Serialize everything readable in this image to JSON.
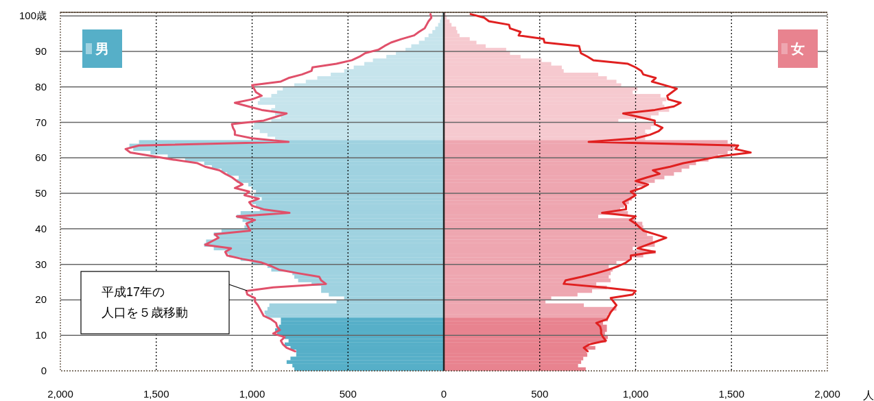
{
  "chart_data": {
    "type": "bar",
    "orientation": "horizontal",
    "stacked": true,
    "legend": "top",
    "xlabel": "人",
    "grid": true,
    "categories": [
      "100歳",
      null,
      null,
      null,
      null,
      null,
      null,
      null,
      null,
      null,
      "90",
      null,
      null,
      null,
      null,
      null,
      null,
      null,
      null,
      null,
      "80",
      null,
      null,
      null,
      null,
      null,
      null,
      null,
      null,
      null,
      "70",
      null,
      null,
      null,
      null,
      null,
      null,
      null,
      null,
      null,
      "60",
      null,
      null,
      null,
      null,
      null,
      null,
      null,
      null,
      null,
      "50",
      null,
      null,
      null,
      null,
      null,
      null,
      null,
      null,
      null,
      "40",
      null,
      null,
      null,
      null,
      null,
      null,
      null,
      null,
      null,
      "30",
      null,
      null,
      null,
      null,
      null,
      null,
      null,
      null,
      null,
      "20",
      null,
      null,
      null,
      null,
      null,
      null,
      null,
      null,
      null,
      "10",
      null,
      null,
      null,
      null,
      null,
      null,
      null,
      null,
      null,
      "0"
    ],
    "xlim": [
      -2000,
      2000
    ],
    "xticks": [
      {
        "value": -2000,
        "label": "2,000"
      },
      {
        "value": -1500,
        "label": "1,500"
      },
      {
        "value": -1000,
        "label": "1,000"
      },
      {
        "value": -500,
        "label": "500"
      },
      0,
      500,
      {
        "value": 1000,
        "label": "1,000"
      },
      {
        "value": 1500,
        "label": "1,500"
      },
      {
        "value": 2000,
        "label": "2,000"
      }
    ],
    "annotations": [
      "平成17年の",
      "人口を５歳移動"
    ],
    "series": [
      {
        "name": "男",
        "color": "#56afc8",
        "colors": [
          "#c6e4ec",
          "#c6e4ec",
          "#c6e4ec",
          "#c6e4ec",
          "#c6e4ec",
          "#c6e4ec",
          "#c6e4ec",
          "#c6e4ec",
          "#c6e4ec",
          "#c6e4ec",
          "#c6e4ec",
          "#c6e4ec",
          "#c6e4ec",
          "#c6e4ec",
          "#c6e4ec",
          "#c6e4ec",
          "#c6e4ec",
          "#c6e4ec",
          "#c6e4ec",
          "#c6e4ec",
          "#c6e4ec",
          "#c6e4ec",
          "#c6e4ec",
          "#c6e4ec",
          "#c6e4ec",
          "#c6e4ec",
          "#c6e4ec",
          "#c6e4ec",
          "#c6e4ec",
          "#c6e4ec",
          "#c6e4ec",
          "#c6e4ec",
          "#c6e4ec",
          "#c6e4ec",
          "#c6e4ec",
          "#c6e4ec",
          "#9fd2e0",
          "#9fd2e0",
          "#9fd2e0",
          "#9fd2e0",
          "#9fd2e0",
          "#9fd2e0",
          "#9fd2e0",
          "#9fd2e0",
          "#9fd2e0",
          "#9fd2e0",
          "#9fd2e0",
          "#9fd2e0",
          "#9fd2e0",
          "#9fd2e0",
          "#9fd2e0",
          "#9fd2e0",
          "#9fd2e0",
          "#9fd2e0",
          "#9fd2e0",
          "#9fd2e0",
          "#9fd2e0",
          "#9fd2e0",
          "#9fd2e0",
          "#9fd2e0",
          "#9fd2e0",
          "#9fd2e0",
          "#9fd2e0",
          "#9fd2e0",
          "#9fd2e0",
          "#9fd2e0",
          "#9fd2e0",
          "#9fd2e0",
          "#9fd2e0",
          "#9fd2e0",
          "#9fd2e0",
          "#9fd2e0",
          "#9fd2e0",
          "#9fd2e0",
          "#9fd2e0",
          "#9fd2e0",
          "#9fd2e0",
          "#9fd2e0",
          "#9fd2e0",
          "#9fd2e0",
          "#9fd2e0",
          "#9fd2e0",
          "#9fd2e0",
          "#9fd2e0",
          "#9fd2e0",
          "#9fd2e0",
          "#56afc8",
          "#56afc8",
          "#56afc8",
          "#56afc8",
          "#56afc8",
          "#56afc8",
          "#56afc8",
          "#56afc8",
          "#56afc8",
          "#56afc8",
          "#56afc8",
          "#56afc8",
          "#56afc8",
          "#56afc8",
          "#56afc8"
        ],
        "values": [
          -10,
          -15,
          -20,
          -30,
          -45,
          -60,
          -80,
          -100,
          -130,
          -170,
          -200,
          -250,
          -300,
          -370,
          -415,
          -470,
          -520,
          -590,
          -660,
          -720,
          -780,
          -840,
          -870,
          -900,
          -960,
          -970,
          -880,
          -900,
          -880,
          -850,
          -900,
          -990,
          -1000,
          -960,
          -920,
          -880,
          -1590,
          -1640,
          -1620,
          -1530,
          -1440,
          -1350,
          -1250,
          -1210,
          -1160,
          -1130,
          -1070,
          -1080,
          -1020,
          -1000,
          -980,
          -990,
          -950,
          -1000,
          -980,
          -960,
          -1060,
          -1080,
          -1050,
          -1030,
          -1040,
          -1160,
          -1200,
          -1180,
          -1240,
          -1250,
          -1200,
          -1140,
          -1120,
          -1060,
          -1000,
          -920,
          -900,
          -790,
          -780,
          -760,
          -690,
          -640,
          -640,
          -600,
          -520,
          -560,
          -910,
          -920,
          -935,
          -930,
          -850,
          -850,
          -860,
          -880,
          -870,
          -830,
          -810,
          -830,
          -800,
          -770,
          -770,
          -800,
          -820,
          -790,
          -780
        ]
      },
      {
        "name": "女",
        "color": "#e8838f",
        "colors": [
          "#f6c9cf",
          "#f6c9cf",
          "#f6c9cf",
          "#f6c9cf",
          "#f6c9cf",
          "#f6c9cf",
          "#f6c9cf",
          "#f6c9cf",
          "#f6c9cf",
          "#f6c9cf",
          "#f6c9cf",
          "#f6c9cf",
          "#f6c9cf",
          "#f6c9cf",
          "#f6c9cf",
          "#f6c9cf",
          "#f6c9cf",
          "#f6c9cf",
          "#f6c9cf",
          "#f6c9cf",
          "#f6c9cf",
          "#f6c9cf",
          "#f6c9cf",
          "#f6c9cf",
          "#f6c9cf",
          "#f6c9cf",
          "#f6c9cf",
          "#f6c9cf",
          "#f6c9cf",
          "#f6c9cf",
          "#f6c9cf",
          "#f6c9cf",
          "#f6c9cf",
          "#f6c9cf",
          "#f6c9cf",
          "#f6c9cf",
          "#eea6b0",
          "#eea6b0",
          "#eea6b0",
          "#eea6b0",
          "#eea6b0",
          "#eea6b0",
          "#eea6b0",
          "#eea6b0",
          "#eea6b0",
          "#eea6b0",
          "#eea6b0",
          "#eea6b0",
          "#eea6b0",
          "#eea6b0",
          "#eea6b0",
          "#eea6b0",
          "#eea6b0",
          "#eea6b0",
          "#eea6b0",
          "#eea6b0",
          "#eea6b0",
          "#eea6b0",
          "#eea6b0",
          "#eea6b0",
          "#eea6b0",
          "#eea6b0",
          "#eea6b0",
          "#eea6b0",
          "#eea6b0",
          "#eea6b0",
          "#eea6b0",
          "#eea6b0",
          "#eea6b0",
          "#eea6b0",
          "#eea6b0",
          "#eea6b0",
          "#eea6b0",
          "#eea6b0",
          "#eea6b0",
          "#eea6b0",
          "#eea6b0",
          "#eea6b0",
          "#eea6b0",
          "#eea6b0",
          "#eea6b0",
          "#eea6b0",
          "#eea6b0",
          "#eea6b0",
          "#eea6b0",
          "#eea6b0",
          "#e8838f",
          "#e8838f",
          "#e8838f",
          "#e8838f",
          "#e8838f",
          "#e8838f",
          "#e8838f",
          "#e8838f",
          "#e8838f",
          "#e8838f",
          "#e8838f",
          "#e8838f",
          "#e8838f",
          "#e8838f",
          "#e8838f"
        ],
        "values": [
          10,
          15,
          30,
          40,
          64,
          70,
          82,
          135,
          170,
          218,
          325,
          345,
          400,
          510,
          560,
          615,
          625,
          805,
          850,
          900,
          925,
          1010,
          985,
          1130,
          1160,
          1140,
          1150,
          1175,
          1120,
          1080,
          910,
          1100,
          1080,
          1050,
          1060,
          1050,
          1480,
          1520,
          1510,
          1480,
          1430,
          1380,
          1315,
          1280,
          1240,
          1200,
          1150,
          1100,
          1050,
          1010,
          1000,
          1000,
          980,
          965,
          940,
          920,
          960,
          805,
          1000,
          1035,
          1040,
          1050,
          1060,
          1090,
          1090,
          1100,
          985,
          1105,
          1040,
          970,
          900,
          860,
          880,
          870,
          860,
          870,
          795,
          850,
          773,
          697,
          560,
          530,
          730,
          900,
          870,
          855,
          855,
          830,
          850,
          850,
          840,
          855,
          845,
          756,
          790,
          745,
          748,
          727,
          716,
          700,
          740
        ]
      },
      {
        "type": "line",
        "color": "#e0506a",
        "values": [
          -70,
          -65,
          -80,
          -90,
          -100,
          -130,
          -155,
          -220,
          -275,
          -310,
          -340,
          -410,
          -440,
          -480,
          -560,
          -685,
          -690,
          -740,
          -810,
          -850,
          -1000,
          -990,
          -980,
          -950,
          -1000,
          -1090,
          -1020,
          -950,
          -820,
          -880,
          -940,
          -1105,
          -1100,
          -1090,
          -1090,
          -1000,
          -810,
          -1590,
          -1660,
          -1635,
          -1520,
          -1410,
          -1285,
          -1245,
          -1170,
          -1140,
          -1105,
          -1080,
          -1050,
          -1090,
          -1015,
          -1040,
          -965,
          -1015,
          -1000,
          -940,
          -805,
          -1080,
          -985,
          -1030,
          -1020,
          -1010,
          -1195,
          -1175,
          -1210,
          -1245,
          -1110,
          -1140,
          -1130,
          -1050,
          -950,
          -900,
          -860,
          -760,
          -650,
          -640,
          -615,
          -890,
          -1030,
          -1025,
          -985,
          -985,
          -970,
          -960,
          -950,
          -940,
          -900,
          -875,
          -870,
          -855,
          -890,
          -830,
          -850,
          -840,
          -820,
          -775,
          null,
          null,
          null,
          null,
          null
        ]
      },
      {
        "type": "line",
        "color": "#e02020",
        "values": [
          140,
          210,
          235,
          340,
          345,
          400,
          390,
          520,
          525,
          705,
          710,
          715,
          750,
          780,
          960,
          1000,
          1030,
          1040,
          1105,
          1085,
          1150,
          1215,
          1190,
          1165,
          1170,
          1235,
          1200,
          1100,
          935,
          1020,
          1100,
          1100,
          1140,
          1120,
          1075,
          1000,
          755,
          1535,
          1520,
          1600,
          1445,
          1350,
          1250,
          1180,
          1090,
          1125,
          1060,
          1000,
          1065,
          1030,
          975,
          1000,
          970,
          935,
          950,
          950,
          825,
          1000,
          970,
          1000,
          1020,
          1040,
          1100,
          1160,
          1110,
          1060,
          1010,
          1100,
          975,
          975,
          950,
          910,
          860,
          795,
          720,
          635,
          625,
          830,
          1000,
          985,
          870,
          885,
          900,
          885,
          870,
          860,
          850,
          795,
          815,
          820,
          820,
          830,
          845,
          760,
          730,
          750,
          null,
          null,
          null,
          null,
          null
        ]
      }
    ]
  }
}
